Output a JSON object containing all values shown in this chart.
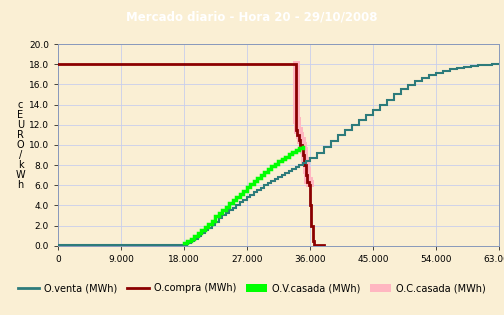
{
  "title": "Mercado diario - Hora 20 - 29/10/2008",
  "title_bg": "#1f3c6e",
  "title_fg": "#ffffff",
  "bg_color": "#faefd4",
  "plot_bg": "#faefd4",
  "grid_color": "#c8ceec",
  "xlim": [
    0,
    63000
  ],
  "ylim": [
    0,
    20
  ],
  "xticks": [
    0,
    9000,
    18000,
    27000,
    36000,
    45000,
    54000,
    63000
  ],
  "yticks": [
    0.0,
    2.0,
    4.0,
    6.0,
    8.0,
    10.0,
    12.0,
    14.0,
    16.0,
    18.0,
    20.0
  ],
  "color_venta": "#2d7b7b",
  "color_compra": "#8b0000",
  "color_ov_casada": "#00ff00",
  "color_oc_casada": "#ffb6c1",
  "legend_labels": [
    "O.venta (MWh)",
    "O.compra (MWh)",
    "O.V.casada (MWh)",
    "O.C.casada (MWh)"
  ],
  "ylabel_chars": [
    "c",
    "E",
    "U",
    "R",
    "O",
    "/",
    "k",
    "W",
    "h"
  ],
  "venta_q": [
    0,
    1000,
    2000,
    3000,
    4000,
    5000,
    6000,
    7000,
    8000,
    9000,
    10000,
    11000,
    12000,
    13000,
    14000,
    15000,
    16000,
    17000,
    18000,
    18500,
    19000,
    19500,
    20000,
    20500,
    21000,
    21500,
    22000,
    22500,
    23000,
    23500,
    24000,
    24500,
    25000,
    25500,
    26000,
    26500,
    27000,
    27500,
    28000,
    28500,
    29000,
    29500,
    30000,
    30500,
    31000,
    31500,
    32000,
    32500,
    33000,
    33500,
    34000,
    34500,
    35000,
    35500,
    36000,
    37000,
    38000,
    39000,
    40000,
    41000,
    42000,
    43000,
    44000,
    45000,
    46000,
    47000,
    48000,
    49000,
    50000,
    51000,
    52000,
    53000,
    54000,
    55000,
    56000,
    57000,
    58000,
    59000,
    60000,
    61000,
    62000,
    63000
  ],
  "venta_p": [
    0.1,
    0.1,
    0.1,
    0.1,
    0.1,
    0.1,
    0.1,
    0.1,
    0.1,
    0.1,
    0.1,
    0.1,
    0.1,
    0.1,
    0.1,
    0.1,
    0.1,
    0.1,
    0.1,
    0.3,
    0.5,
    0.7,
    1.0,
    1.3,
    1.6,
    1.8,
    2.1,
    2.4,
    2.7,
    3.0,
    3.2,
    3.5,
    3.7,
    4.0,
    4.3,
    4.5,
    4.8,
    5.0,
    5.3,
    5.5,
    5.7,
    6.0,
    6.2,
    6.4,
    6.6,
    6.8,
    7.0,
    7.2,
    7.4,
    7.6,
    7.8,
    8.0,
    8.2,
    8.4,
    8.7,
    9.2,
    9.8,
    10.4,
    11.0,
    11.5,
    12.0,
    12.5,
    13.0,
    13.5,
    14.0,
    14.5,
    15.0,
    15.5,
    15.9,
    16.3,
    16.6,
    16.9,
    17.1,
    17.3,
    17.5,
    17.6,
    17.7,
    17.8,
    17.9,
    17.95,
    18.0,
    18.0
  ],
  "compra_q": [
    0,
    34000,
    34000,
    34200,
    34400,
    34600,
    34800,
    35000,
    35200,
    35400,
    35600,
    35800,
    36000,
    36200,
    36400,
    36600,
    38000
  ],
  "compra_p": [
    18.0,
    18.0,
    12.0,
    11.5,
    11.0,
    10.5,
    10.0,
    9.8,
    9.0,
    8.0,
    7.0,
    6.3,
    6.0,
    4.0,
    2.0,
    0.5,
    0.1
  ],
  "ov_q": [
    18000,
    18500,
    19000,
    19500,
    20000,
    20500,
    21000,
    21500,
    22000,
    22500,
    23000,
    23500,
    24000,
    24500,
    25000,
    25500,
    26000,
    26500,
    27000,
    27500,
    28000,
    28500,
    29000,
    29500,
    30000,
    30500,
    31000,
    31500,
    32000,
    32500,
    33000,
    33500,
    34000,
    34500,
    35000
  ],
  "ov_p": [
    0.3,
    0.5,
    0.7,
    1.0,
    1.3,
    1.6,
    1.9,
    2.2,
    2.5,
    2.9,
    3.2,
    3.5,
    3.8,
    4.2,
    4.5,
    4.8,
    5.1,
    5.4,
    5.8,
    6.1,
    6.4,
    6.7,
    7.0,
    7.3,
    7.6,
    7.9,
    8.1,
    8.4,
    8.6,
    8.8,
    9.1,
    9.3,
    9.5,
    9.7,
    9.8
  ],
  "oc_q": [
    34000,
    34200,
    34400,
    34600,
    34800,
    35000,
    35200,
    35400,
    35600,
    35800,
    36000
  ],
  "oc_p": [
    18.0,
    12.5,
    11.5,
    11.0,
    10.5,
    10.0,
    9.5,
    8.5,
    7.5,
    6.5,
    6.2
  ]
}
